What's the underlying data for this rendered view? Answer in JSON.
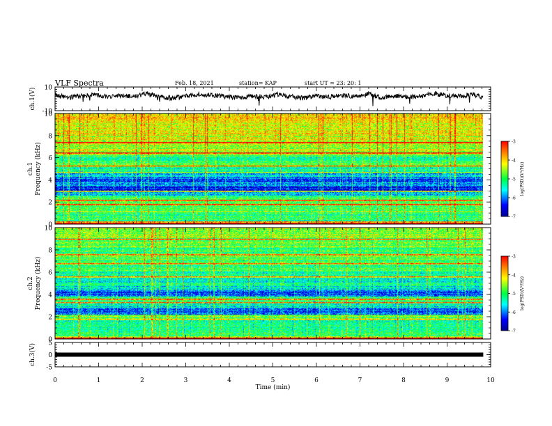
{
  "header": {
    "title": "VLF Spectra",
    "date": "Feb. 18, 2021",
    "station": "station= KAP",
    "start": "start  UT  =   23: 20: 1"
  },
  "chart_data": [
    {
      "type": "line",
      "panel": "ch1-waveform",
      "ylabel": "ch.1(V)",
      "ylim": [
        -10,
        10
      ],
      "yticks": [
        10,
        -10
      ],
      "xlim": [
        0,
        10
      ],
      "color": "#000000",
      "envelope_center": [
        [
          0.0,
          3.5
        ],
        [
          0.3,
          1.0
        ],
        [
          0.6,
          2.5
        ],
        [
          0.9,
          4.0
        ],
        [
          1.2,
          1.5
        ],
        [
          1.5,
          3.0
        ],
        [
          1.8,
          2.0
        ],
        [
          2.1,
          4.5
        ],
        [
          2.4,
          1.5
        ],
        [
          2.7,
          0.5
        ],
        [
          3.0,
          2.5
        ],
        [
          3.3,
          4.0
        ],
        [
          3.6,
          3.0
        ],
        [
          3.9,
          2.0
        ],
        [
          4.2,
          1.0
        ],
        [
          4.5,
          2.5
        ],
        [
          4.8,
          1.5
        ],
        [
          5.1,
          3.5
        ],
        [
          5.4,
          2.0
        ],
        [
          5.7,
          0.5
        ],
        [
          6.0,
          2.5
        ],
        [
          6.3,
          1.5
        ],
        [
          6.6,
          3.0
        ],
        [
          6.9,
          2.0
        ],
        [
          7.2,
          4.0
        ],
        [
          7.5,
          1.0
        ],
        [
          7.8,
          2.5
        ],
        [
          8.1,
          1.5
        ],
        [
          8.4,
          2.0
        ],
        [
          8.7,
          4.5
        ],
        [
          9.0,
          3.0
        ],
        [
          9.3,
          2.0
        ],
        [
          9.6,
          4.0
        ],
        [
          9.8,
          1.0
        ]
      ]
    },
    {
      "type": "heatmap",
      "panel": "ch1-spectrogram",
      "ylabel_top": "ch.1",
      "ylabel": "Frequency (kHz)",
      "ylim": [
        0,
        10
      ],
      "yticks": [
        0,
        2,
        4,
        6,
        8,
        10
      ],
      "xlim": [
        0,
        10
      ],
      "band_levels": [
        [
          0.0,
          0.25,
          0.75
        ],
        [
          0.25,
          0.5,
          0.45
        ],
        [
          0.5,
          1.0,
          0.5
        ],
        [
          1.0,
          1.5,
          0.55
        ],
        [
          1.5,
          2.0,
          0.52
        ],
        [
          2.0,
          2.5,
          0.55
        ],
        [
          2.5,
          3.0,
          0.35
        ],
        [
          3.0,
          3.4,
          0.12
        ],
        [
          3.4,
          3.8,
          0.3
        ],
        [
          3.8,
          4.3,
          0.2
        ],
        [
          4.3,
          4.8,
          0.32
        ],
        [
          4.8,
          5.2,
          0.4
        ],
        [
          5.2,
          5.5,
          0.6
        ],
        [
          5.5,
          6.2,
          0.45
        ],
        [
          6.2,
          6.6,
          0.6
        ],
        [
          6.6,
          7.2,
          0.62
        ],
        [
          7.2,
          8.0,
          0.68
        ],
        [
          8.0,
          9.0,
          0.7
        ],
        [
          9.0,
          10.0,
          0.72
        ]
      ],
      "strong_lines_khz": [
        0.15,
        1.8,
        2.2,
        3.0,
        4.7,
        5.3,
        6.5,
        7.4
      ],
      "colorbar": {
        "label": "log(PSD)(V²/Hz)",
        "range": [
          -7,
          -3
        ],
        "ticks": [
          -3,
          -4,
          -5,
          -6,
          -7
        ]
      }
    },
    {
      "type": "heatmap",
      "panel": "ch2-spectrogram",
      "ylabel_top": "ch.2",
      "ylabel": "Frequency (kHz)",
      "ylim": [
        0,
        10
      ],
      "yticks": [
        0,
        2,
        4,
        6,
        8,
        10
      ],
      "xlim": [
        0,
        10
      ],
      "band_levels": [
        [
          0.0,
          0.25,
          0.7
        ],
        [
          0.25,
          0.6,
          0.45
        ],
        [
          0.6,
          1.2,
          0.45
        ],
        [
          1.2,
          1.8,
          0.42
        ],
        [
          1.8,
          2.2,
          0.55
        ],
        [
          2.2,
          2.8,
          0.2
        ],
        [
          2.8,
          3.4,
          0.4
        ],
        [
          3.4,
          3.8,
          0.5
        ],
        [
          3.8,
          4.3,
          0.2
        ],
        [
          4.3,
          4.8,
          0.35
        ],
        [
          4.8,
          5.4,
          0.42
        ],
        [
          5.4,
          6.0,
          0.45
        ],
        [
          6.0,
          6.8,
          0.5
        ],
        [
          6.8,
          7.5,
          0.55
        ],
        [
          7.5,
          8.2,
          0.5
        ],
        [
          8.2,
          9.0,
          0.55
        ],
        [
          9.0,
          10.0,
          0.58
        ]
      ],
      "strong_lines_khz": [
        0.1,
        1.8,
        3.3,
        3.6,
        5.6,
        6.8,
        7.6,
        9.0
      ],
      "colorbar": {
        "label": "log(PSD)(V²/Hz)",
        "range": [
          -7,
          -3
        ],
        "ticks": [
          -3,
          -4,
          -5,
          -6,
          -7
        ]
      }
    },
    {
      "type": "line",
      "panel": "ch3-waveform",
      "ylabel": "ch.3(V)",
      "ylim": [
        -5,
        5
      ],
      "yticks": [
        5,
        0,
        -5
      ],
      "xlim": [
        0,
        10
      ],
      "level": 0,
      "color": "#000000"
    },
    {
      "type": "axis",
      "panel": "time-axis",
      "xlabel": "Time (min)",
      "xticks": [
        0,
        1,
        2,
        3,
        4,
        5,
        6,
        7,
        8,
        9,
        10
      ],
      "data_end_min": 9.83
    }
  ]
}
